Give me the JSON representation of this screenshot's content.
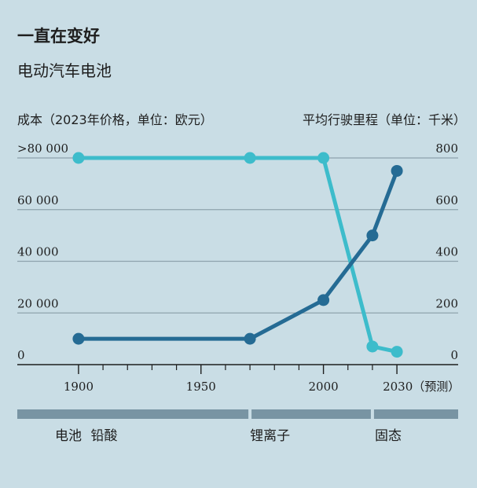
{
  "header": {
    "title": "一直在变好",
    "subtitle": "电动汽车电池",
    "left_axis_label": "成本（2023年价格，单位：欧元）",
    "right_axis_label": "平均行驶里程（单位：千米）"
  },
  "chart_data": {
    "type": "line",
    "x": [
      1900,
      1970,
      2000,
      2020,
      2030
    ],
    "xlim": [
      1875,
      2055
    ],
    "x_ticks": [
      "1900",
      "1950",
      "2000",
      "2030（预测）"
    ],
    "x_tick_values": [
      1900,
      1950,
      2000,
      2030
    ],
    "x_minor_ticks": [
      1910,
      1920,
      1930,
      1940,
      1960,
      1970,
      1980,
      1990,
      2010,
      2020
    ],
    "left_axis": {
      "ylim": [
        0,
        80000
      ],
      "ticks": [
        0,
        20000,
        40000,
        60000,
        80000
      ],
      "tick_labels": [
        "0",
        "20 000",
        "40 000",
        "60 000",
        ">80 000"
      ]
    },
    "right_axis": {
      "ylim": [
        0,
        800
      ],
      "ticks": [
        0,
        200,
        400,
        600,
        800
      ],
      "tick_labels": [
        "0",
        "200",
        "400",
        "600",
        "800"
      ]
    },
    "grid": true,
    "series": [
      {
        "axis": "left",
        "color": "#3dbccb",
        "values": [
          80000,
          80000,
          80000,
          7000,
          5000
        ]
      },
      {
        "axis": "right",
        "color": "#256b94",
        "values": [
          100,
          100,
          250,
          500,
          750
        ]
      }
    ],
    "eras": [
      {
        "label": "电池",
        "start": 1875,
        "end": 1970,
        "label_at": 1875
      },
      {
        "label": "铅酸",
        "start": 1875,
        "end": 1970,
        "label_at": 1905
      },
      {
        "label": "锂离子",
        "start": 1970,
        "end": 2020,
        "label_at": 1970
      },
      {
        "label": "固态",
        "start": 2020,
        "end": 2055,
        "label_at": 2021
      }
    ],
    "colors": {
      "grid": "#8ea3ad",
      "axis": "#1e1e1e",
      "era_band": "#7894a3",
      "background": "#c9dde5"
    }
  }
}
